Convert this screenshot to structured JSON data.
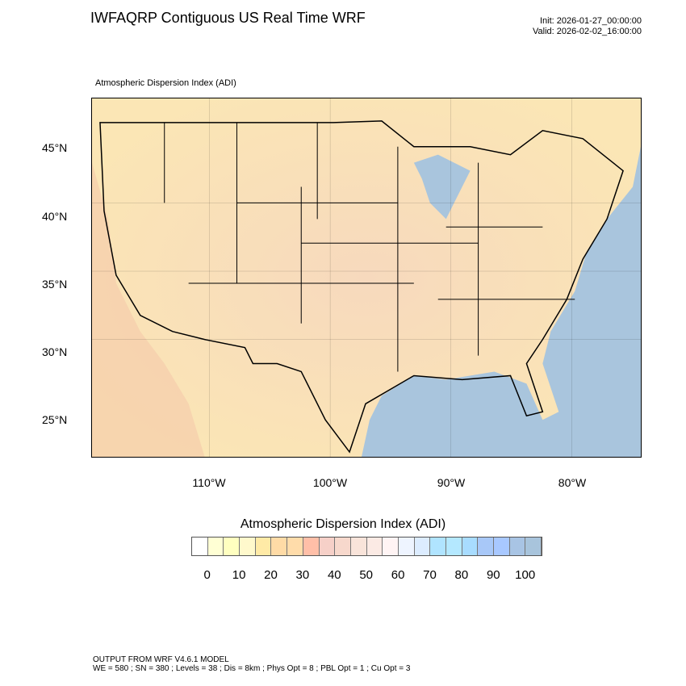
{
  "header": {
    "title": "IWFAQRP Contiguous US Real Time WRF",
    "init": "Init: 2026-01-27_00:00:00",
    "valid": "Valid: 2026-02-02_16:00:00"
  },
  "map": {
    "subtitle": "Atmospheric Dispersion Index   (ADI)",
    "lat_labels": [
      "45°N",
      "40°N",
      "35°N",
      "30°N",
      "25°N"
    ],
    "lon_labels": [
      "110°W",
      "100°W",
      "90°W",
      "80°W"
    ],
    "colors": {
      "ocean": "#a9c5dd",
      "land": "#f8ddb0"
    }
  },
  "colorbar": {
    "title": "Atmospheric Dispersion Index  (ADI)",
    "labels": [
      "0",
      "10",
      "20",
      "30",
      "40",
      "50",
      "60",
      "70",
      "80",
      "90",
      "100"
    ],
    "colors": [
      "#ffffff",
      "#ffffd4",
      "#ffffc0",
      "#fff9cc",
      "#ffeaa6",
      "#ffdba6",
      "#ffdcaa",
      "#ffbfa8",
      "#f6d0c8",
      "#f7d8cc",
      "#f9e4da",
      "#fbeae4",
      "#fff4f4",
      "#eef4ff",
      "#dcecff",
      "#b0e4ff",
      "#b4e8ff",
      "#a8dcff",
      "#a8c8f8",
      "#a8c8ff",
      "#a8c4e4",
      "#a8c4dc"
    ]
  },
  "footer": {
    "line1": "OUTPUT FROM WRF V4.6.1 MODEL",
    "line2": "WE = 580 ; SN = 380 ; Levels = 38 ; Dis = 8km ; Phys Opt = 8 ; PBL Opt = 1 ; Cu Opt = 3"
  }
}
